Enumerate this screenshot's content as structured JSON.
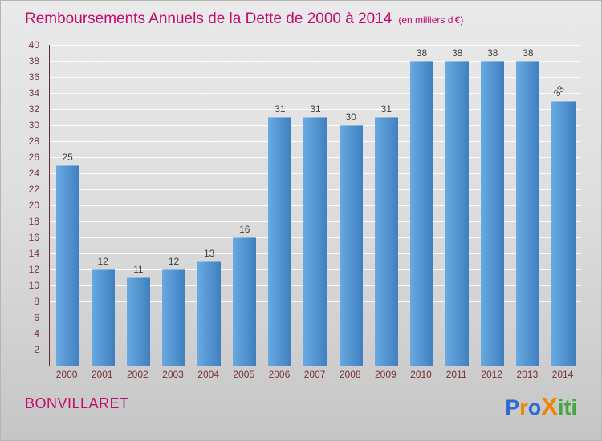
{
  "header": {
    "title": "Remboursements Annuels de la Dette de 2000 à 2014",
    "subtitle": "(en milliers d'€)"
  },
  "chart_data": {
    "type": "bar",
    "title": "Remboursements Annuels de la Dette de 2000 à 2014",
    "subtitle": "(en milliers d'€)",
    "categories": [
      "2000",
      "2001",
      "2002",
      "2003",
      "2004",
      "2005",
      "2006",
      "2007",
      "2008",
      "2009",
      "2010",
      "2011",
      "2012",
      "2013",
      "2014"
    ],
    "values": [
      25,
      12,
      11,
      12,
      13,
      16,
      31,
      31,
      30,
      31,
      38,
      38,
      38,
      38,
      33
    ],
    "xlabel": "",
    "ylabel": "",
    "ylim": [
      0,
      40
    ],
    "ytick_step": 2,
    "grid": true,
    "legend": "none",
    "last_value_label_rotated": true
  },
  "footer": {
    "commune_name": "BONVILLARET",
    "logo_letters": [
      {
        "ch": "P",
        "color": "#2b6bd3",
        "big": false
      },
      {
        "ch": "r",
        "color": "#f08300",
        "big": false
      },
      {
        "ch": "o",
        "color": "#2b6bd3",
        "big": false
      },
      {
        "ch": "X",
        "color": "#f08300",
        "big": true
      },
      {
        "ch": "i",
        "color": "#44a63f",
        "big": false
      },
      {
        "ch": "t",
        "color": "#44a63f",
        "big": false
      },
      {
        "ch": "i",
        "color": "#44a63f",
        "big": false
      }
    ]
  },
  "colors": {
    "title": "#c40a6e",
    "axis": "#6f2a2a",
    "tick_text": "#7a3333",
    "grid": "#ffffff",
    "bar_top": "#68aae1",
    "bar_bottom": "#3f7fc0",
    "value_text": "#3f3f3f",
    "background_top": "#eaeaea",
    "background_bottom": "#c6c6c6"
  }
}
